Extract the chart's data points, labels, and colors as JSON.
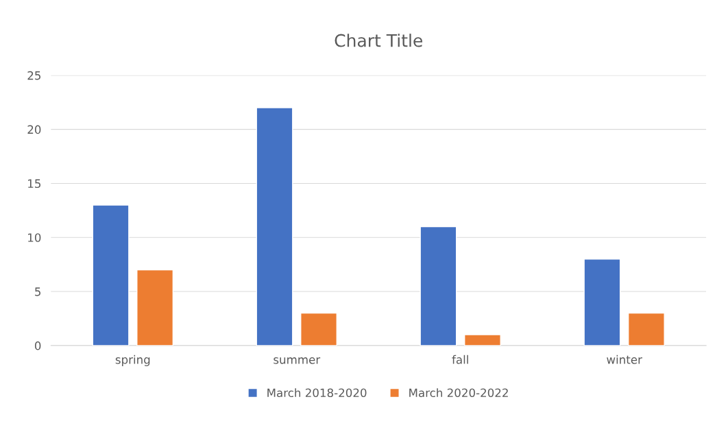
{
  "chart_data": {
    "type": "bar",
    "title": "Chart Title",
    "categories": [
      "spring",
      "summer",
      "fall",
      "winter"
    ],
    "series": [
      {
        "name": "March 2018-2020",
        "color": "#4472c4",
        "values": [
          13,
          22,
          11,
          8
        ]
      },
      {
        "name": "March 2020-2022",
        "color": "#ed7d31",
        "values": [
          7,
          3,
          1,
          3
        ]
      }
    ],
    "ylim": [
      0,
      25
    ],
    "yticks": [
      0,
      5,
      10,
      15,
      20,
      25
    ],
    "grid": "y",
    "legend": "bottom"
  }
}
